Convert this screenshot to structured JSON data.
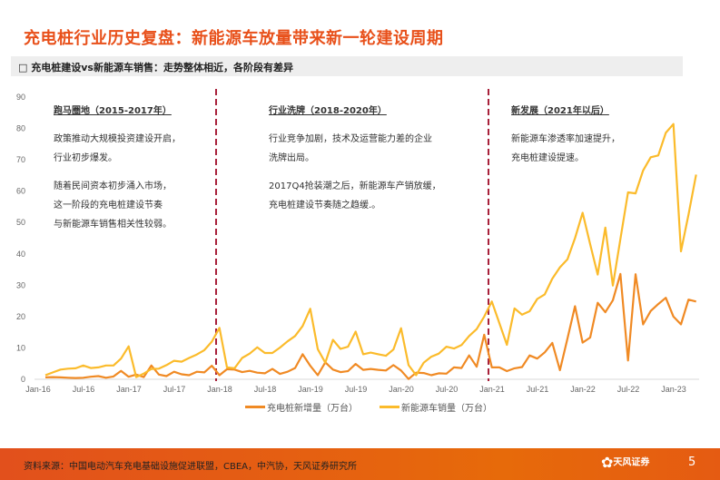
{
  "header": {
    "title": "充电桩行业历史复盘：新能源车放量带来新一轮建设周期",
    "subtitle": "□ 充电桩建设vs新能源车销售：走势整体相近，各阶段有差异"
  },
  "annotations": [
    {
      "heading": "跑马圈地（2015-2017年）",
      "paras": [
        "政策推动大规模投资建设开启，\n行业初步爆发。",
        "随着民间资本初步涌入市场，\n这一阶段的充电桩建设节奏\n与新能源车销售相关性较弱。"
      ]
    },
    {
      "heading": "行业洗牌（2018-2020年）",
      "paras": [
        "行业竞争加剧，技术及运营能力差的企业\n洗牌出局。",
        "2017Q4抢装潮之后，新能源车产销放缓，\n充电桩建设节奏随之趋缓.。"
      ]
    },
    {
      "heading": "新发展（2021年以后）",
      "paras": [
        "新能源车渗透率加速提升，\n充电桩建设提速。"
      ]
    }
  ],
  "chart_data": {
    "type": "line",
    "x_start": "Jan-16",
    "x_end": "Mar-23",
    "xticks": [
      "Jan-16",
      "Jul-16",
      "Jan-17",
      "Jul-17",
      "Jan-18",
      "Jul-18",
      "Jan-19",
      "Jul-19",
      "Jan-20",
      "Jul-20",
      "Jan-21",
      "Jul-21",
      "Jan-22",
      "Jul-22",
      "Jan-23"
    ],
    "yticks": [
      "0",
      "10",
      "20",
      "30",
      "40",
      "50",
      "60",
      "70",
      "80",
      "90"
    ],
    "ylim": [
      0,
      90
    ],
    "dividers": [
      "Jan-18",
      "Jan-21"
    ],
    "series": [
      {
        "name": "充电桩新增量（万台）",
        "color": "#f08a24",
        "values": [
          0.6,
          0.7,
          0.6,
          0.5,
          0.4,
          0.5,
          0.8,
          1.0,
          0.5,
          0.9,
          2.7,
          0.8,
          1.5,
          0.7,
          4.4,
          1.5,
          1.0,
          2.4,
          1.6,
          1.3,
          2.4,
          2.2,
          4.3,
          1.3,
          3.2,
          3.1,
          2.3,
          2.7,
          2.1,
          1.9,
          3.3,
          1.7,
          2.4,
          3.6,
          8.0,
          4.3,
          1.3,
          5.4,
          3.1,
          2.3,
          2.6,
          4.9,
          3.0,
          3.3,
          3.0,
          2.8,
          4.5,
          2.8,
          0.1,
          2.1,
          2.0,
          1.3,
          1.9,
          1.8,
          3.8,
          3.6,
          7.6,
          4.0,
          14.2,
          3.8,
          3.8,
          2.6,
          3.5,
          3.9,
          7.6,
          6.6,
          8.6,
          11.6,
          2.9,
          13.0,
          23.3,
          11.7,
          13.3,
          24.4,
          21.4,
          25.2,
          33.6,
          6.0,
          33.5,
          17.5,
          21.8,
          24.0,
          26.0,
          20.0,
          17.5,
          25.4,
          24.8
        ]
      },
      {
        "name": "新能源车销量（万台）",
        "color": "#fbbb2b",
        "values": [
          1.3,
          2.2,
          3.1,
          3.4,
          3.5,
          4.4,
          3.6,
          3.8,
          4.4,
          4.4,
          6.6,
          10.5,
          0.7,
          1.8,
          3.3,
          3.4,
          4.5,
          5.9,
          5.6,
          6.8,
          7.9,
          9.3,
          12.0,
          16.4,
          3.8,
          3.5,
          6.8,
          8.2,
          10.2,
          8.4,
          8.4,
          10.1,
          12.1,
          13.8,
          17.0,
          22.5,
          9.6,
          5.3,
          12.6,
          9.7,
          10.4,
          15.2,
          8.0,
          8.5,
          8.0,
          7.5,
          9.5,
          16.3,
          4.5,
          1.3,
          5.3,
          7.2,
          8.2,
          10.4,
          9.8,
          10.9,
          13.8,
          16.0,
          20.0,
          24.8,
          17.9,
          11.0,
          22.6,
          20.6,
          21.7,
          25.6,
          27.1,
          32.1,
          35.7,
          38.3,
          45.0,
          53.1,
          43.1,
          33.4,
          48.4,
          29.9,
          44.7,
          59.6,
          59.3,
          66.6,
          70.8,
          71.4,
          78.6,
          81.4,
          40.8,
          52.5,
          65.3
        ]
      }
    ]
  },
  "legend": [
    "充电桩新增量（万台）",
    "新能源车销量（万台）"
  ],
  "footer": {
    "source": "资料来源：中国电动汽车充电基础设施促进联盟，CBEA，中汽协，天风证券研究所",
    "logo": "天风证券",
    "page": "5"
  }
}
